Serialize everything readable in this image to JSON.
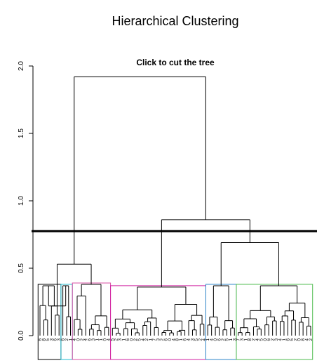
{
  "window": {
    "title": "Hierarchical Clustering",
    "subtitle": "Click to cut the tree"
  },
  "chart_data": {
    "type": "dendrogram",
    "title": "Hierarchical Clustering",
    "subtitle": "Click to cut the tree",
    "ylabel": "",
    "xlabel": "",
    "ylim": [
      0,
      2.0
    ],
    "y_ticks": [
      "0.0",
      "0.5",
      "1.0",
      "1.5",
      "2.0"
    ],
    "y_tick_values": [
      0,
      0.5,
      1.0,
      1.5,
      2.0
    ],
    "cut_height": 0.775,
    "root_height": 1.92,
    "n_leaves": 72,
    "merges": [
      {
        "name": "root",
        "height": 1.92
      },
      {
        "name": "left-group",
        "height": 0.53
      },
      {
        "name": "right-group",
        "height": 0.86
      },
      {
        "name": "right-right-group",
        "height": 0.69
      }
    ],
    "clusters": [
      {
        "name": "cluster-1",
        "color": "#000000",
        "leaves": 6,
        "height": 0.37
      },
      {
        "name": "cluster-2",
        "color": "#22bcd0",
        "leaves": 3,
        "height": 0.37
      },
      {
        "name": "cluster-3",
        "color": "#d94fa3",
        "leaves": 10,
        "height": 0.38
      },
      {
        "name": "cluster-4",
        "color": "#d11fa0",
        "leaves": 25,
        "height": 0.36
      },
      {
        "name": "cluster-5",
        "color": "#2c86c9",
        "leaves": 8,
        "height": 0.37
      },
      {
        "name": "cluster-6",
        "color": "#4dbb4d",
        "leaves": 20,
        "height": 0.37
      }
    ],
    "leaf_labels": [
      "6",
      "8",
      "5",
      "3",
      "6",
      "3",
      "6",
      "2",
      "1",
      "4",
      "0",
      "2",
      "4",
      "6",
      "3",
      "1",
      "1",
      "0",
      "4",
      "5",
      "2",
      "3",
      "1",
      "6",
      "0",
      "2",
      "5",
      "4",
      "2",
      "1",
      "7",
      "3",
      "2",
      "6",
      "0",
      "4",
      "8",
      "1",
      "6",
      "4",
      "3",
      "5",
      "2",
      "4",
      "1",
      "4",
      "0",
      "6",
      "2",
      "5",
      "1",
      "3",
      "7",
      "3",
      "1",
      "8",
      "2",
      "4",
      "5",
      "0",
      "6",
      "2",
      "3",
      "4",
      "1",
      "6",
      "5",
      "2",
      "0",
      "8",
      "4",
      "2"
    ]
  }
}
